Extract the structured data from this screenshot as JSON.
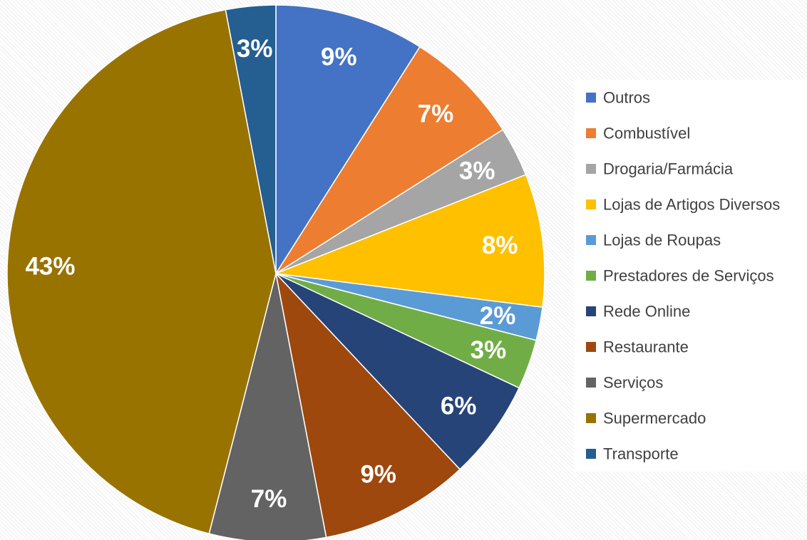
{
  "chart_data": {
    "type": "pie",
    "categories": [
      "Outros",
      "Combustível",
      "Drogaria/Farmácia",
      "Lojas de Artigos Diversos",
      "Lojas de Roupas",
      "Prestadores de Serviços",
      "Rede Online",
      "Restaurante",
      "Serviços",
      "Supermercado",
      "Transporte"
    ],
    "values": [
      9,
      7,
      3,
      8,
      2,
      3,
      6,
      9,
      7,
      43,
      3
    ],
    "value_labels": [
      "9%",
      "7%",
      "3%",
      "8%",
      "2%",
      "3%",
      "6%",
      "9%",
      "7%",
      "43%",
      "3%"
    ],
    "colors": [
      "#4472c4",
      "#ed7d31",
      "#a5a5a5",
      "#ffc000",
      "#5b9bd5",
      "#70ad47",
      "#264478",
      "#9e480e",
      "#636363",
      "#997300",
      "#255e91"
    ],
    "legend": "right"
  }
}
